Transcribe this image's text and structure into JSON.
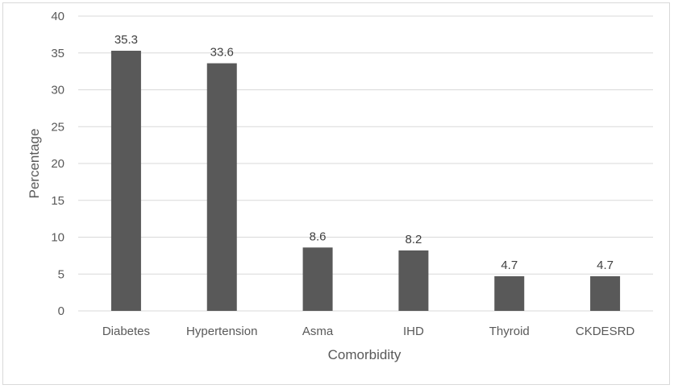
{
  "chart_data": {
    "type": "bar",
    "categories": [
      "Diabetes",
      "Hypertension",
      "Asma",
      "IHD",
      "Thyroid",
      "CKDESRD"
    ],
    "values": [
      35.3,
      33.6,
      8.6,
      8.2,
      4.7,
      4.7
    ],
    "data_labels": [
      "35.3",
      "33.6",
      "8.6",
      "8.2",
      "4.7",
      "4.7"
    ],
    "title": "",
    "xlabel": "Comorbidity",
    "ylabel": "Percentage",
    "ylim": [
      0,
      40
    ],
    "yticks": [
      0,
      5,
      10,
      15,
      20,
      25,
      30,
      35,
      40
    ],
    "grid": true,
    "legend": "none",
    "colors": {
      "bar": "#595959",
      "grid": "#d9d9d9",
      "text": "#595959"
    }
  }
}
